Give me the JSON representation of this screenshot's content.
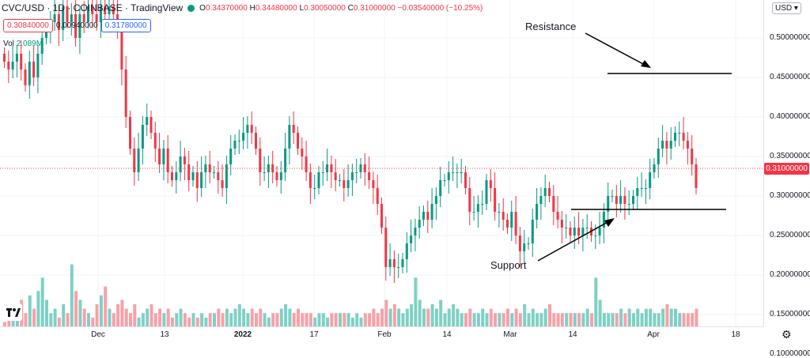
{
  "header": {
    "symbol": "CVC/USD · 1D · COINBASE · TradingView",
    "open_label": "O",
    "open": "0.34370000",
    "high_label": "H",
    "high": "0.34480000",
    "low_label": "L",
    "low": "0.30050000",
    "close_label": "C",
    "close": "0.31000000",
    "change": "−0.03540000 (−10.25%)"
  },
  "price_boxes": {
    "bid": "0.30840000",
    "spread": "0.00940000",
    "ask": "0.31780000"
  },
  "volume": {
    "label": "Vol",
    "value": "2.089M"
  },
  "currency_button": "USD",
  "current_price": "0.31000000",
  "price_axis": [
    "0.50000000",
    "0.45000000",
    "0.40000000",
    "0.35000000",
    "0.30000000",
    "0.25000000",
    "0.20000000",
    "0.15000000",
    "0.10000000"
  ],
  "time_axis": [
    "Dec",
    "13",
    "2022",
    "17",
    "Feb",
    "14",
    "Mar",
    "14",
    "Apr",
    "18"
  ],
  "annotations": {
    "resistance": "Resistance",
    "support": "Support"
  },
  "colors": {
    "up": "#089981",
    "down": "#f23645",
    "vol_up": "#7fd0c4",
    "vol_down": "#f7a1a8"
  },
  "icons": {
    "logo": "tradingview-logo-icon",
    "settings": "gear-icon"
  },
  "chart_data": {
    "type": "candlestick",
    "ylim": [
      0.19,
      0.54
    ],
    "resistance": 0.45,
    "support": 0.25,
    "closes": [
      0.47,
      0.46,
      0.47,
      0.48,
      0.46,
      0.44,
      0.47,
      0.45,
      0.48,
      0.5,
      0.51,
      0.52,
      0.53,
      0.51,
      0.54,
      0.52,
      0.53,
      0.5,
      0.53,
      0.52,
      0.54,
      0.53,
      0.52,
      0.54,
      0.53,
      0.54,
      0.53,
      0.51,
      0.46,
      0.4,
      0.36,
      0.33,
      0.36,
      0.39,
      0.4,
      0.38,
      0.36,
      0.34,
      0.36,
      0.33,
      0.32,
      0.33,
      0.35,
      0.34,
      0.32,
      0.33,
      0.31,
      0.33,
      0.34,
      0.33,
      0.33,
      0.32,
      0.31,
      0.34,
      0.36,
      0.37,
      0.37,
      0.38,
      0.39,
      0.38,
      0.36,
      0.33,
      0.33,
      0.34,
      0.33,
      0.32,
      0.33,
      0.36,
      0.39,
      0.38,
      0.36,
      0.35,
      0.33,
      0.31,
      0.31,
      0.33,
      0.33,
      0.34,
      0.33,
      0.32,
      0.32,
      0.31,
      0.32,
      0.33,
      0.33,
      0.34,
      0.33,
      0.32,
      0.31,
      0.29,
      0.26,
      0.21,
      0.22,
      0.21,
      0.21,
      0.22,
      0.24,
      0.25,
      0.26,
      0.27,
      0.28,
      0.27,
      0.29,
      0.3,
      0.32,
      0.32,
      0.33,
      0.33,
      0.33,
      0.33,
      0.31,
      0.28,
      0.28,
      0.29,
      0.29,
      0.32,
      0.31,
      0.28,
      0.28,
      0.27,
      0.26,
      0.28,
      0.25,
      0.23,
      0.24,
      0.24,
      0.27,
      0.29,
      0.3,
      0.31,
      0.3,
      0.28,
      0.27,
      0.26,
      0.26,
      0.25,
      0.26,
      0.25,
      0.26,
      0.26,
      0.25,
      0.25,
      0.26,
      0.28,
      0.3,
      0.3,
      0.29,
      0.3,
      0.29,
      0.29,
      0.3,
      0.31,
      0.31,
      0.31,
      0.33,
      0.34,
      0.36,
      0.37,
      0.36,
      0.37,
      0.38,
      0.38,
      0.37,
      0.36,
      0.34,
      0.31
    ],
    "volumes": [
      0.07,
      0.09,
      0.08,
      0.11,
      0.12,
      0.09,
      0.13,
      0.1,
      0.14,
      0.17,
      0.12,
      0.09,
      0.1,
      0.08,
      0.11,
      0.09,
      0.2,
      0.14,
      0.12,
      0.1,
      0.09,
      0.08,
      0.11,
      0.13,
      0.15,
      0.1,
      0.09,
      0.11,
      0.12,
      0.1,
      0.09,
      0.11,
      0.08,
      0.09,
      0.1,
      0.11,
      0.09,
      0.1,
      0.09,
      0.1,
      0.08,
      0.09,
      0.1,
      0.09,
      0.08,
      0.09,
      0.08,
      0.09,
      0.08,
      0.09,
      0.09,
      0.1,
      0.09,
      0.1,
      0.09,
      0.1,
      0.11,
      0.1,
      0.09,
      0.1,
      0.09,
      0.1,
      0.09,
      0.08,
      0.09,
      0.09,
      0.1,
      0.11,
      0.1,
      0.09,
      0.1,
      0.09,
      0.09,
      0.09,
      0.08,
      0.09,
      0.09,
      0.08,
      0.09,
      0.09,
      0.09,
      0.09,
      0.09,
      0.08,
      0.09,
      0.08,
      0.09,
      0.09,
      0.1,
      0.09,
      0.1,
      0.12,
      0.1,
      0.11,
      0.1,
      0.09,
      0.1,
      0.11,
      0.17,
      0.12,
      0.1,
      0.1,
      0.11,
      0.1,
      0.12,
      0.09,
      0.1,
      0.11,
      0.1,
      0.09,
      0.09,
      0.1,
      0.09,
      0.09,
      0.1,
      0.09,
      0.1,
      0.09,
      0.09,
      0.09,
      0.1,
      0.09,
      0.1,
      0.09,
      0.11,
      0.09,
      0.1,
      0.09,
      0.09,
      0.1,
      0.11,
      0.09,
      0.09,
      0.09,
      0.09,
      0.09,
      0.09,
      0.09,
      0.09,
      0.1,
      0.09,
      0.17,
      0.12,
      0.09,
      0.09,
      0.09,
      0.09,
      0.1,
      0.09,
      0.1,
      0.09,
      0.1,
      0.09,
      0.1,
      0.1,
      0.09,
      0.09,
      0.1,
      0.11,
      0.1,
      0.1,
      0.09,
      0.09,
      0.09,
      0.09,
      0.1
    ]
  }
}
